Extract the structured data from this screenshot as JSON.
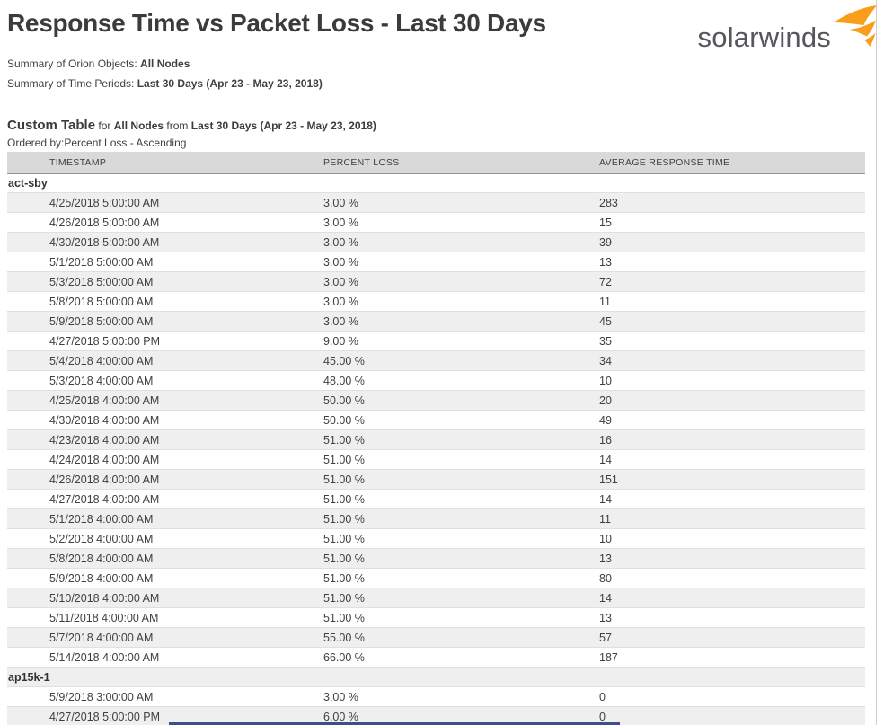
{
  "page": {
    "title": "Response Time vs Packet Loss - Last 30 Days",
    "logo_text": "solarwinds",
    "logo_icon": "solarwinds-flame-icon"
  },
  "summary": {
    "orion_objects_label": "Summary of Orion Objects: ",
    "orion_objects_value": "All Nodes",
    "time_periods_label": "Summary of Time Periods: ",
    "time_periods_value": "Last 30 Days (Apr 23 - May 23, 2018)"
  },
  "section": {
    "title": "Custom Table",
    "for_label": " for ",
    "for_value": "All Nodes",
    "from_label": " from ",
    "from_value": "Last 30 Days (Apr 23 - May 23, 2018)",
    "ordered_by": "Ordered by:Percent Loss - Ascending"
  },
  "table": {
    "columns": [
      "TIMESTAMP",
      "PERCENT LOSS",
      "AVERAGE RESPONSE TIME"
    ],
    "groups": [
      {
        "name": "act-sby",
        "rows": [
          [
            "4/25/2018 5:00:00 AM",
            "3.00 %",
            "283"
          ],
          [
            "4/26/2018 5:00:00 AM",
            "3.00 %",
            "15"
          ],
          [
            "4/30/2018 5:00:00 AM",
            "3.00 %",
            "39"
          ],
          [
            "5/1/2018 5:00:00 AM",
            "3.00 %",
            "13"
          ],
          [
            "5/3/2018 5:00:00 AM",
            "3.00 %",
            "72"
          ],
          [
            "5/8/2018 5:00:00 AM",
            "3.00 %",
            "11"
          ],
          [
            "5/9/2018 5:00:00 AM",
            "3.00 %",
            "45"
          ],
          [
            "4/27/2018 5:00:00 PM",
            "9.00 %",
            "35"
          ],
          [
            "5/4/2018 4:00:00 AM",
            "45.00 %",
            "34"
          ],
          [
            "5/3/2018 4:00:00 AM",
            "48.00 %",
            "10"
          ],
          [
            "4/25/2018 4:00:00 AM",
            "50.00 %",
            "20"
          ],
          [
            "4/30/2018 4:00:00 AM",
            "50.00 %",
            "49"
          ],
          [
            "4/23/2018 4:00:00 AM",
            "51.00 %",
            "16"
          ],
          [
            "4/24/2018 4:00:00 AM",
            "51.00 %",
            "14"
          ],
          [
            "4/26/2018 4:00:00 AM",
            "51.00 %",
            "151"
          ],
          [
            "4/27/2018 4:00:00 AM",
            "51.00 %",
            "14"
          ],
          [
            "5/1/2018 4:00:00 AM",
            "51.00 %",
            "11"
          ],
          [
            "5/2/2018 4:00:00 AM",
            "51.00 %",
            "10"
          ],
          [
            "5/8/2018 4:00:00 AM",
            "51.00 %",
            "13"
          ],
          [
            "5/9/2018 4:00:00 AM",
            "51.00 %",
            "80"
          ],
          [
            "5/10/2018 4:00:00 AM",
            "51.00 %",
            "14"
          ],
          [
            "5/11/2018 4:00:00 AM",
            "51.00 %",
            "13"
          ],
          [
            "5/7/2018 4:00:00 AM",
            "55.00 %",
            "57"
          ],
          [
            "5/14/2018 4:00:00 AM",
            "66.00 %",
            "187"
          ]
        ]
      },
      {
        "name": "ap15k-1",
        "rows": [
          [
            "5/9/2018 3:00:00 AM",
            "3.00 %",
            "0"
          ],
          [
            "4/27/2018 5:00:00 PM",
            "6.00 %",
            "0"
          ]
        ]
      }
    ]
  },
  "colors": {
    "accent_orange": "#f99d1b",
    "header_row_bg": "#d9d9d9",
    "stripe_bg": "#efefef",
    "title_text": "#3b3b3b",
    "body_text": "#404040",
    "logo_text": "#55575b",
    "row_border": "#e0e0e0",
    "group_border": "#969696",
    "bottom_bar": "#3a5086",
    "page_edge_line": "#cfcfcf"
  }
}
